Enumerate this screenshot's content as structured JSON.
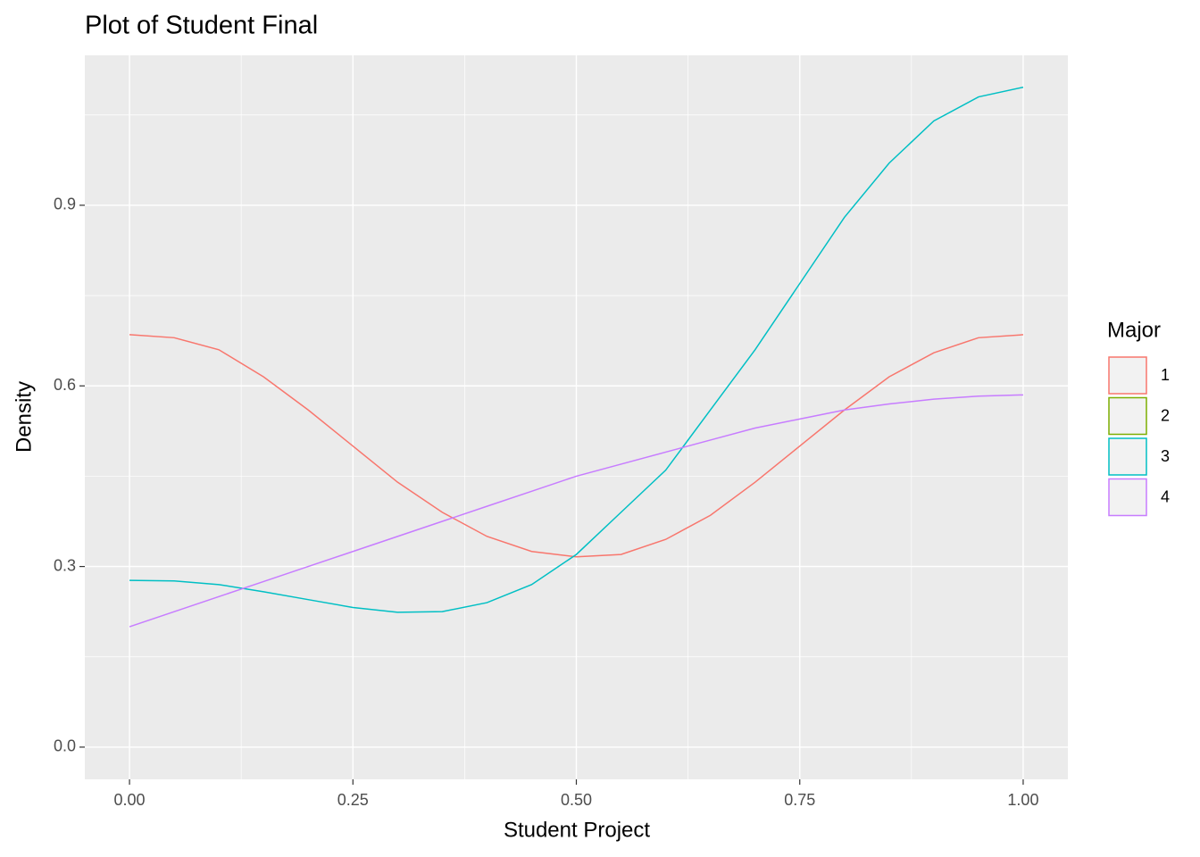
{
  "chart_data": {
    "type": "line",
    "title": "Plot of Student Final",
    "xlabel": "Student Project",
    "ylabel": "Density",
    "x": [
      0,
      0.05,
      0.1,
      0.15,
      0.2,
      0.25,
      0.3,
      0.35,
      0.4,
      0.45,
      0.5,
      0.55,
      0.6,
      0.65,
      0.7,
      0.75,
      0.8,
      0.85,
      0.9,
      0.95,
      1.0
    ],
    "series": [
      {
        "name": "1",
        "color": "#F8766D",
        "values": [
          0.685,
          0.68,
          0.66,
          0.615,
          0.56,
          0.5,
          0.44,
          0.39,
          0.35,
          0.325,
          0.316,
          0.32,
          0.345,
          0.385,
          0.44,
          0.5,
          0.56,
          0.615,
          0.655,
          0.68,
          0.685
        ]
      },
      {
        "name": "2",
        "color": "#7CAE00",
        "values": [
          null,
          null,
          null,
          null,
          null,
          null,
          null,
          null,
          null,
          null,
          null,
          null,
          null,
          null,
          null,
          null,
          null,
          null,
          null,
          null,
          null
        ]
      },
      {
        "name": "3",
        "color": "#00BFC4",
        "values": [
          0.277,
          0.276,
          0.27,
          0.258,
          0.245,
          0.232,
          0.224,
          0.225,
          0.24,
          0.27,
          0.32,
          0.39,
          0.46,
          0.56,
          0.66,
          0.77,
          0.88,
          0.97,
          1.04,
          1.08,
          1.096
        ]
      },
      {
        "name": "4",
        "color": "#C77CFF",
        "values": [
          0.2,
          0.225,
          0.25,
          0.275,
          0.3,
          0.325,
          0.35,
          0.375,
          0.4,
          0.425,
          0.45,
          0.47,
          0.49,
          0.51,
          0.53,
          0.545,
          0.56,
          0.57,
          0.578,
          0.583,
          0.585
        ]
      }
    ],
    "legend_title": "Major",
    "legend": "right",
    "xlim": [
      -0.05,
      1.05
    ],
    "xticks": [
      {
        "value": 0,
        "label": "0.00"
      },
      {
        "value": 0.25,
        "label": "0.25"
      },
      {
        "value": 0.5,
        "label": "0.50"
      },
      {
        "value": 0.75,
        "label": "0.75"
      },
      {
        "value": 1,
        "label": "1.00"
      }
    ],
    "ylim": [
      -0.0535,
      1.149
    ],
    "yticks": [
      {
        "value": 0,
        "label": "0.0"
      },
      0.3,
      0.6,
      0.9
    ],
    "grid": true
  }
}
